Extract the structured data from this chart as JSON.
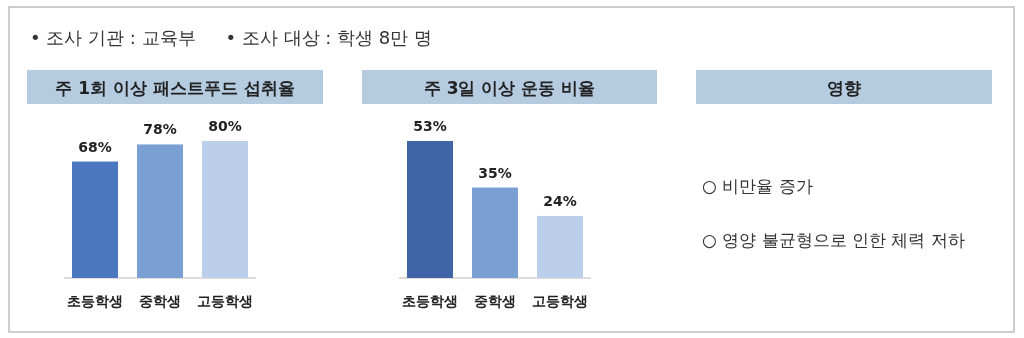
{
  "chart_data": [
    {
      "type": "other",
      "annotations": [
        "• 조사 기관 : 교육부",
        "• 조사 대상 : 학생 8만 명"
      ]
    },
    {
      "type": "bar",
      "title": "주 1회 이상 패스트푸드 섭취율",
      "categories": [
        "초등학생",
        "중학생",
        "고등학생"
      ],
      "values": [
        68,
        78,
        80
      ],
      "colors": [
        "#4a77bd",
        "#7aa0d3",
        "#bccfea"
      ],
      "value_labels": [
        "68%",
        "78%",
        "80%"
      ]
    },
    {
      "type": "bar",
      "title": "주 3일 이상 운동 비율",
      "categories": [
        "초등학생",
        "중학생",
        "고등학생"
      ],
      "values": [
        53,
        35,
        24
      ],
      "colors": [
        "#3f65a6",
        "#7aa0d3",
        "#bccfea"
      ],
      "value_labels": [
        "53%",
        "35%",
        "24%"
      ]
    },
    {
      "type": "other",
      "title": "영향",
      "annotations": [
        "○ 비만율 증가",
        "○ 영양 불균형으로 인한 체력 저하"
      ]
    }
  ]
}
